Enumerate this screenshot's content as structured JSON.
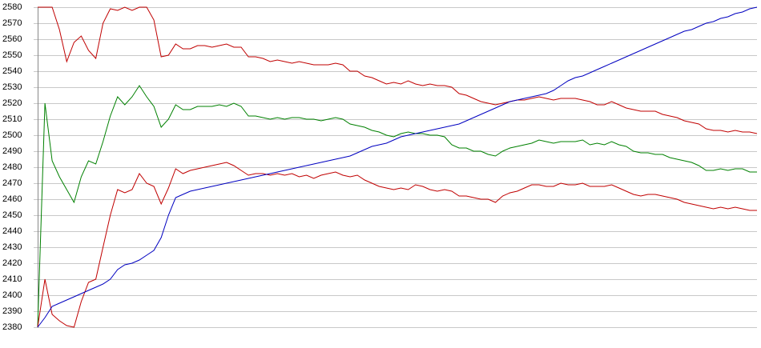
{
  "chart_data": {
    "type": "line",
    "ylim": [
      2380,
      2580
    ],
    "yticks": [
      2380,
      2390,
      2400,
      2410,
      2420,
      2430,
      2440,
      2450,
      2460,
      2470,
      2480,
      2490,
      2500,
      2510,
      2520,
      2530,
      2540,
      2550,
      2560,
      2570,
      2580
    ],
    "grid": true,
    "series": [
      {
        "color": "#c00000",
        "values": [
          2580,
          2580,
          2580,
          2566,
          2546,
          2558,
          2562,
          2553,
          2548,
          2570,
          2579,
          2578,
          2580,
          2578,
          2580,
          2580,
          2572,
          2549,
          2550,
          2557,
          2554,
          2554,
          2556,
          2556,
          2555,
          2556,
          2557,
          2555,
          2555,
          2549,
          2549,
          2548,
          2546,
          2547,
          2546,
          2545,
          2546,
          2545,
          2544,
          2544,
          2544,
          2545,
          2544,
          2540,
          2540,
          2537,
          2536,
          2534,
          2532,
          2533,
          2532,
          2534,
          2532,
          2531,
          2532,
          2531,
          2531,
          2530,
          2526,
          2525,
          2523,
          2521,
          2520,
          2519,
          2520,
          2521,
          2522,
          2522,
          2523,
          2524,
          2523,
          2522,
          2523,
          2523,
          2523,
          2522,
          2521,
          2519,
          2519,
          2521,
          2519,
          2517,
          2516,
          2515,
          2515,
          2515,
          2513,
          2512,
          2511,
          2509,
          2508,
          2507,
          2504,
          2503,
          2503,
          2502,
          2503,
          2502,
          2502,
          2501
        ]
      },
      {
        "color": "#008000",
        "values": [
          2380,
          2520,
          2484,
          2474,
          2466,
          2458,
          2474,
          2484,
          2482,
          2496,
          2512,
          2524,
          2519,
          2524,
          2531,
          2524,
          2518,
          2505,
          2510,
          2519,
          2516,
          2516,
          2518,
          2518,
          2518,
          2519,
          2518,
          2520,
          2518,
          2512,
          2512,
          2511,
          2510,
          2511,
          2510,
          2511,
          2511,
          2510,
          2510,
          2509,
          2510,
          2511,
          2510,
          2507,
          2506,
          2505,
          2503,
          2502,
          2500,
          2499,
          2501,
          2502,
          2501,
          2501,
          2500,
          2500,
          2499,
          2494,
          2492,
          2492,
          2490,
          2490,
          2488,
          2487,
          2490,
          2492,
          2493,
          2494,
          2495,
          2497,
          2496,
          2495,
          2496,
          2496,
          2496,
          2497,
          2494,
          2495,
          2494,
          2496,
          2494,
          2493,
          2490,
          2489,
          2489,
          2488,
          2488,
          2486,
          2485,
          2484,
          2483,
          2481,
          2478,
          2478,
          2479,
          2478,
          2479,
          2479,
          2477,
          2477
        ]
      },
      {
        "color": "#c00000",
        "values": [
          2380,
          2410,
          2388,
          2384,
          2381,
          2380,
          2396,
          2408,
          2410,
          2430,
          2450,
          2466,
          2464,
          2466,
          2476,
          2470,
          2468,
          2457,
          2467,
          2479,
          2476,
          2478,
          2479,
          2480,
          2481,
          2482,
          2483,
          2481,
          2478,
          2475,
          2476,
          2476,
          2475,
          2476,
          2475,
          2476,
          2474,
          2475,
          2473,
          2475,
          2476,
          2477,
          2475,
          2474,
          2475,
          2472,
          2470,
          2468,
          2467,
          2466,
          2467,
          2466,
          2469,
          2468,
          2466,
          2465,
          2466,
          2465,
          2462,
          2462,
          2461,
          2460,
          2460,
          2458,
          2462,
          2464,
          2465,
          2467,
          2469,
          2469,
          2468,
          2468,
          2470,
          2469,
          2469,
          2470,
          2468,
          2468,
          2468,
          2469,
          2467,
          2465,
          2463,
          2462,
          2463,
          2463,
          2462,
          2461,
          2460,
          2458,
          2457,
          2456,
          2455,
          2454,
          2455,
          2454,
          2455,
          2454,
          2453,
          2453
        ]
      },
      {
        "color": "#0000c0",
        "values": [
          2380,
          2386,
          2393,
          2395,
          2397,
          2399,
          2401,
          2403,
          2405,
          2407,
          2410,
          2416,
          2419,
          2420,
          2422,
          2425,
          2428,
          2436,
          2450,
          2461,
          2463,
          2465,
          2466,
          2467,
          2468,
          2469,
          2470,
          2471,
          2472,
          2473,
          2474,
          2475,
          2476,
          2477,
          2478,
          2479,
          2480,
          2481,
          2482,
          2483,
          2484,
          2485,
          2486,
          2487,
          2489,
          2491,
          2493,
          2494,
          2495,
          2497,
          2499,
          2500,
          2501,
          2502,
          2503,
          2504,
          2505,
          2506,
          2507,
          2509,
          2511,
          2513,
          2515,
          2517,
          2519,
          2521,
          2522,
          2523,
          2524,
          2525,
          2526,
          2528,
          2531,
          2534,
          2536,
          2537,
          2539,
          2541,
          2543,
          2545,
          2547,
          2549,
          2551,
          2553,
          2555,
          2557,
          2559,
          2561,
          2563,
          2565,
          2566,
          2568,
          2570,
          2571,
          2573,
          2574,
          2576,
          2577,
          2579,
          2580
        ]
      }
    ]
  }
}
